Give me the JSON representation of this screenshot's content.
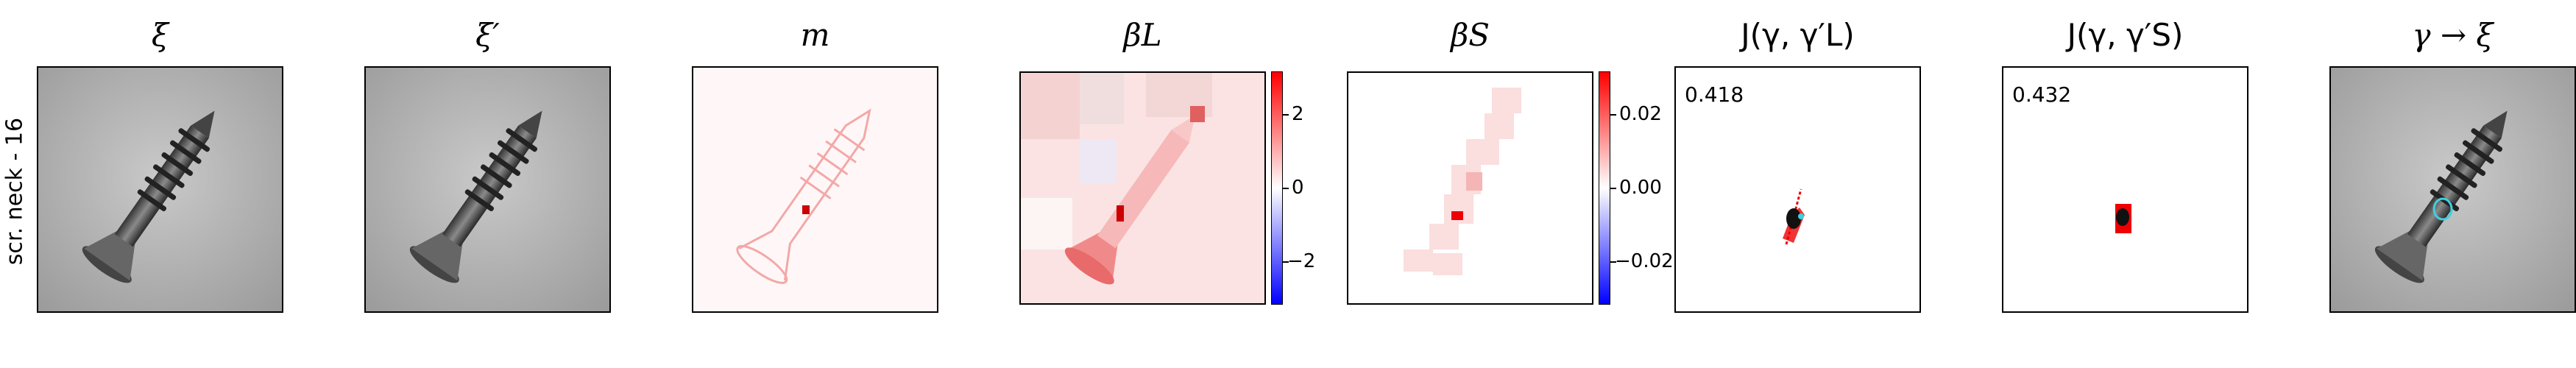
{
  "row_label": "scr. neck - 16",
  "panels": {
    "xi": {
      "title": "ξ"
    },
    "xi_prime": {
      "title": "ξ′"
    },
    "m": {
      "title": "m"
    },
    "beta_L": {
      "title": "βL",
      "colorbar_ticks": [
        "2",
        "0",
        "−2"
      ]
    },
    "beta_S": {
      "title": "βS",
      "colorbar_ticks": [
        "0.02",
        "0.00",
        "−0.02"
      ]
    },
    "J_L": {
      "title": "J(γ, γ′L)",
      "score": "0.418"
    },
    "J_S": {
      "title": "J(γ, γ′S)",
      "score": "0.432"
    },
    "gamma_xi": {
      "title": "γ → ξ"
    }
  },
  "colors": {
    "positive": "#ff0000",
    "negative": "#0000ff",
    "neutral": "#ffffff",
    "highlight": "#3fd0e0"
  }
}
